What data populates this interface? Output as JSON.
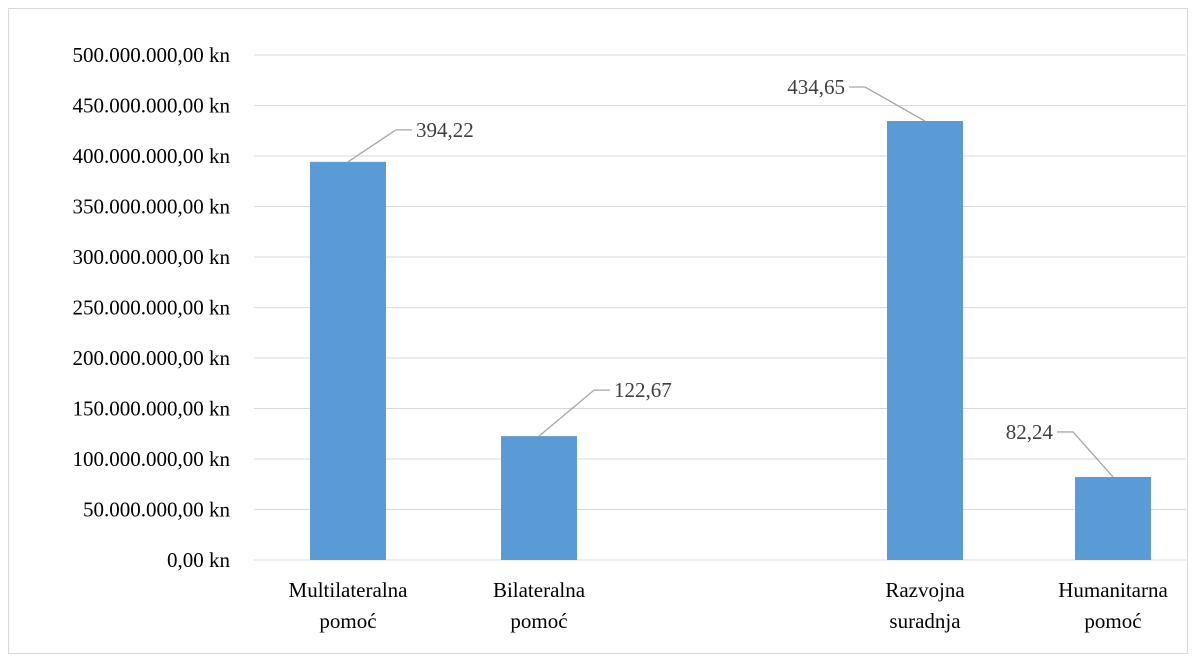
{
  "chart_data": {
    "type": "bar",
    "categories": [
      [
        "Multilateralna",
        "pomoć"
      ],
      [
        "Bilateralna",
        "pomoć"
      ],
      [
        "Razvojna",
        "suradnja"
      ],
      [
        "Humanitarna",
        "pomoć"
      ]
    ],
    "values": [
      394220000,
      122670000,
      434650000,
      82240000
    ],
    "data_labels": [
      "394,22",
      "122,67",
      "434,65",
      "82,24"
    ],
    "ylim": [
      0,
      500000000
    ],
    "yticks": [
      0,
      50000000,
      100000000,
      150000000,
      200000000,
      250000000,
      300000000,
      350000000,
      400000000,
      450000000,
      500000000
    ],
    "ytick_labels": [
      "0,00 kn",
      "50.000.000,00 kn",
      "100.000.000,00 kn",
      "150.000.000,00 kn",
      "200.000.000,00 kn",
      "250.000.000,00 kn",
      "300.000.000,00 kn",
      "350.000.000,00 kn",
      "400.000.000,00 kn",
      "450.000.000,00 kn",
      "500.000.000,00 kn"
    ],
    "grid": true,
    "legend": "none",
    "colors": {
      "bar": "#5b9bd5",
      "grid": "#d9d9d9",
      "leader": "#a6a6a6"
    }
  }
}
